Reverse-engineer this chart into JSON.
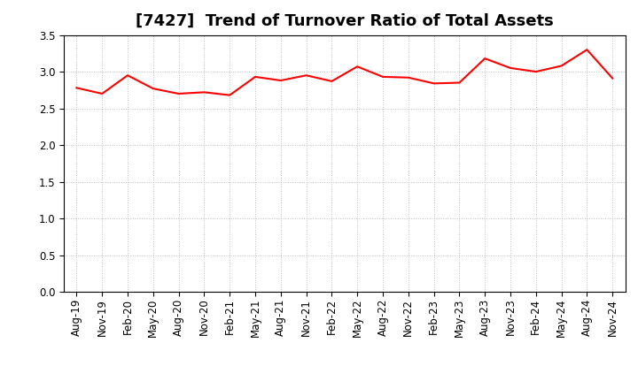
{
  "title": "[7427]  Trend of Turnover Ratio of Total Assets",
  "x_labels": [
    "Aug-19",
    "Nov-19",
    "Feb-20",
    "May-20",
    "Aug-20",
    "Nov-20",
    "Feb-21",
    "May-21",
    "Aug-21",
    "Nov-21",
    "Feb-22",
    "May-22",
    "Aug-22",
    "Nov-22",
    "Feb-23",
    "May-23",
    "Aug-23",
    "Nov-23",
    "Feb-24",
    "May-24",
    "Aug-24",
    "Nov-24"
  ],
  "values": [
    2.78,
    2.7,
    2.95,
    2.77,
    2.7,
    2.72,
    2.68,
    2.93,
    2.88,
    2.95,
    2.87,
    3.07,
    2.93,
    2.92,
    2.84,
    2.85,
    3.18,
    3.05,
    3.0,
    3.08,
    3.3,
    2.91
  ],
  "ylim": [
    0.0,
    3.5
  ],
  "yticks": [
    0.0,
    0.5,
    1.0,
    1.5,
    2.0,
    2.5,
    3.0,
    3.5
  ],
  "line_color": "#ff0000",
  "line_width": 1.5,
  "grid_color": "#bbbbbb",
  "bg_color": "#ffffff",
  "title_fontsize": 13,
  "tick_fontsize": 8.5
}
